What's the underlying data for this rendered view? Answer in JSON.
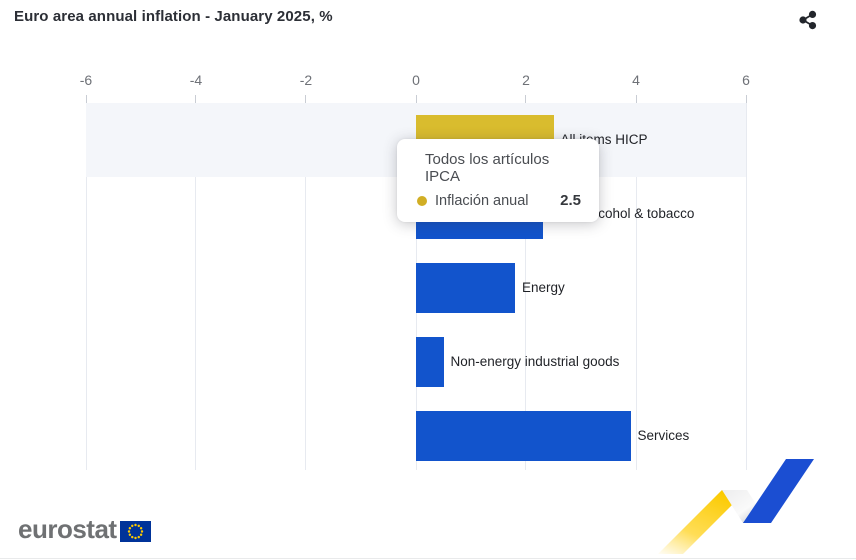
{
  "header": {
    "title": "Euro area annual inflation - January 2025, %"
  },
  "chart_data": {
    "type": "bar",
    "orientation": "horizontal",
    "title": "Euro area annual inflation - January 2025, %",
    "categories": [
      "All items HICP",
      "Food, alcohol & tobacco",
      "Energy",
      "Non-energy industrial goods",
      "Services"
    ],
    "values": [
      2.5,
      2.3,
      1.8,
      0.5,
      3.9
    ],
    "bar_colors": [
      "#d9bc2e",
      "#1254cc",
      "#1254cc",
      "#1254cc",
      "#1254cc"
    ],
    "unit": "%",
    "xlim": [
      -6,
      6
    ],
    "x_ticks": [
      -6,
      -4,
      -2,
      0,
      2,
      4,
      6
    ],
    "grid": true,
    "legend": "none",
    "highlighted_row_index": 0
  },
  "tooltip": {
    "title": "Todos los artículos IPCA",
    "series_label": "Inflación anual",
    "value": "2.5",
    "marker_color": "#d1ae24"
  },
  "footer": {
    "brand": "eurostat"
  },
  "theme": {
    "bar_blue": "#1254cc",
    "bar_yellow": "#d9bc2e",
    "hover_band": "#f4f6fa",
    "gridline": "#e7eaf0",
    "axis_text": "#6e7177",
    "label_text": "#1f2126"
  }
}
